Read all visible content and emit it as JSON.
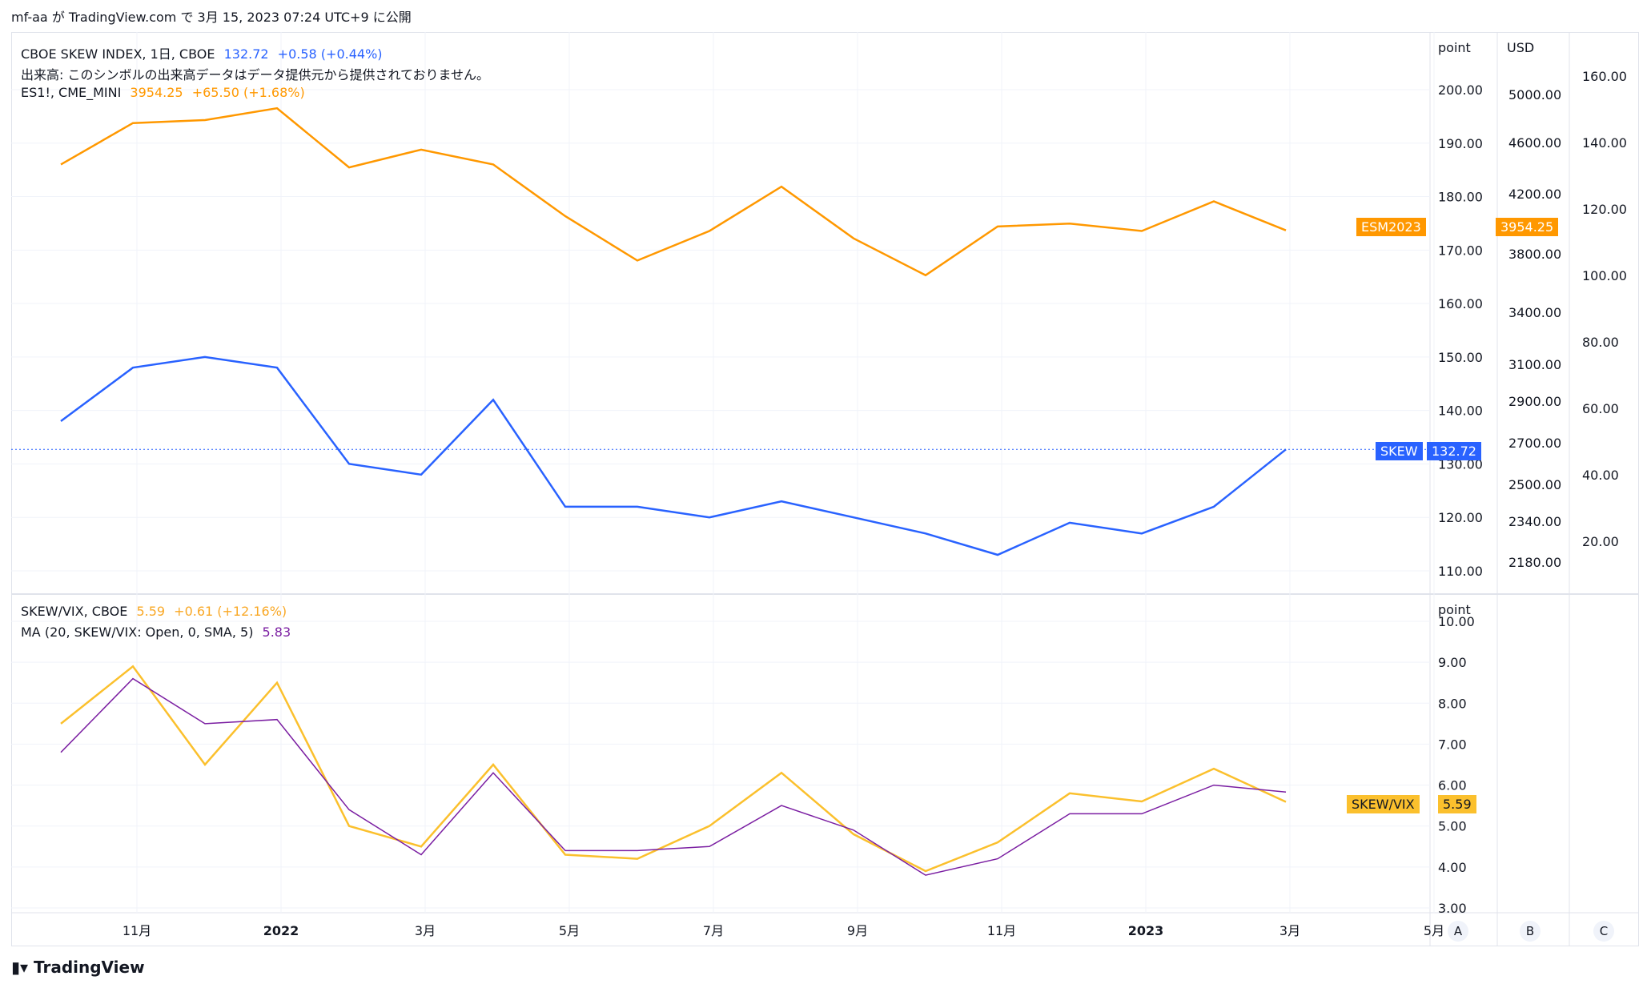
{
  "header": {
    "caption": "mf-aa が TradingView.com で 3月 15, 2023 07:24 UTC+9 に公開"
  },
  "legend_top": {
    "line1": {
      "symbol": "CBOE SKEW INDEX, 1日, CBOE",
      "value": "132.72",
      "change": "+0.58 (+0.44%)"
    },
    "line2": {
      "text": "出来高: このシンボルの出来高データはデータ提供元から提供されておりません。"
    },
    "line3": {
      "symbol": "ES1!, CME_MINI",
      "value": "3954.25",
      "change": "+65.50 (+1.68%)"
    }
  },
  "legend_bottom": {
    "line1": {
      "symbol": "SKEW/VIX, CBOE",
      "value": "5.59",
      "change": "+0.61 (+12.16%)"
    },
    "line2": {
      "symbol": "MA (20, SKEW/VIX: Open, 0, SMA, 5)",
      "value": "5.83"
    }
  },
  "axes": {
    "top_unit": "point",
    "top_unit2": "USD",
    "bottom_unit": "point",
    "scale_buttons": [
      "A",
      "B",
      "C"
    ]
  },
  "tags": {
    "es": {
      "label": "ESM2023",
      "value": "3954.25"
    },
    "skew": {
      "label": "SKEW",
      "value": "132.72"
    },
    "ratio": {
      "label": "SKEW/VIX",
      "value": "5.59"
    }
  },
  "colors": {
    "skew": "#2962ff",
    "es": "#ff9800",
    "ratio": "#fbc02d",
    "ma": "#7b1fa2",
    "grid": "#f0f3fa"
  },
  "footer": {
    "brand": "TradingView"
  },
  "chart_data": [
    {
      "type": "line",
      "title": "CBOE SKEW INDEX, 1日, CBOE",
      "x_ticks": [
        "11月",
        "2022",
        "3月",
        "5月",
        "7月",
        "9月",
        "11月",
        "2023",
        "3月",
        "5月"
      ],
      "y_axis_point_ticks": [
        "110.00",
        "120.00",
        "130.00",
        "140.00",
        "150.00",
        "160.00",
        "170.00",
        "180.00",
        "190.00",
        "200.00"
      ],
      "y_axis_usd_ticks": [
        "2180.00",
        "2340.00",
        "2500.00",
        "2700.00",
        "2900.00",
        "3100.00",
        "3400.00",
        "3800.00",
        "4200.00",
        "4600.00",
        "5000.00"
      ],
      "y_axis_c_ticks": [
        "20.00",
        "40.00",
        "60.00",
        "80.00",
        "100.00",
        "120.00",
        "140.00",
        "160.00"
      ],
      "series": [
        {
          "name": "SKEW",
          "x": [
            "2021-10",
            "2021-11",
            "2021-12",
            "2022-01",
            "2022-02",
            "2022-03",
            "2022-04",
            "2022-05",
            "2022-06",
            "2022-07",
            "2022-08",
            "2022-09",
            "2022-10",
            "2022-11",
            "2022-12",
            "2023-01",
            "2023-02",
            "2023-03"
          ],
          "values": [
            138,
            148,
            150,
            148,
            130,
            128,
            142,
            122,
            122,
            120,
            123,
            120,
            117,
            113,
            119,
            117,
            122,
            132.72
          ]
        },
        {
          "name": "ESM2023",
          "x": [
            "2021-10",
            "2021-11",
            "2021-12",
            "2022-01",
            "2022-02",
            "2022-03",
            "2022-04",
            "2022-05",
            "2022-06",
            "2022-07",
            "2022-08",
            "2022-09",
            "2022-10",
            "2022-11",
            "2022-12",
            "2023-01",
            "2023-02",
            "2023-03"
          ],
          "values": [
            4400,
            4680,
            4700,
            4780,
            4380,
            4500,
            4400,
            4050,
            3750,
            3950,
            4250,
            3900,
            3650,
            3980,
            4000,
            3950,
            4150,
            3954.25
          ]
        }
      ]
    },
    {
      "type": "line",
      "title": "SKEW/VIX, CBOE",
      "x_ticks": [
        "11月",
        "2022",
        "3月",
        "5月",
        "7月",
        "9月",
        "11月",
        "2023",
        "3月",
        "5月"
      ],
      "y_ticks": [
        "3.00",
        "4.00",
        "5.00",
        "6.00",
        "7.00",
        "8.00",
        "9.00",
        "10.00"
      ],
      "series": [
        {
          "name": "SKEW/VIX",
          "x": [
            "2021-10",
            "2021-11",
            "2021-12",
            "2022-01",
            "2022-02",
            "2022-03",
            "2022-04",
            "2022-05",
            "2022-06",
            "2022-07",
            "2022-08",
            "2022-09",
            "2022-10",
            "2022-11",
            "2022-12",
            "2023-01",
            "2023-02",
            "2023-03"
          ],
          "values": [
            7.5,
            8.9,
            6.5,
            8.5,
            5.0,
            4.5,
            6.5,
            4.3,
            4.2,
            5.0,
            6.3,
            4.8,
            3.9,
            4.6,
            5.8,
            5.6,
            6.4,
            5.59
          ]
        },
        {
          "name": "MA (20, SKEW/VIX: Open, 0, SMA, 5)",
          "x": [
            "2021-10",
            "2021-11",
            "2021-12",
            "2022-01",
            "2022-02",
            "2022-03",
            "2022-04",
            "2022-05",
            "2022-06",
            "2022-07",
            "2022-08",
            "2022-09",
            "2022-10",
            "2022-11",
            "2022-12",
            "2023-01",
            "2023-02",
            "2023-03"
          ],
          "values": [
            6.8,
            8.6,
            7.5,
            7.6,
            5.4,
            4.3,
            6.3,
            4.4,
            4.4,
            4.5,
            5.5,
            4.9,
            3.8,
            4.2,
            5.3,
            5.3,
            6.0,
            5.83
          ]
        }
      ]
    }
  ]
}
